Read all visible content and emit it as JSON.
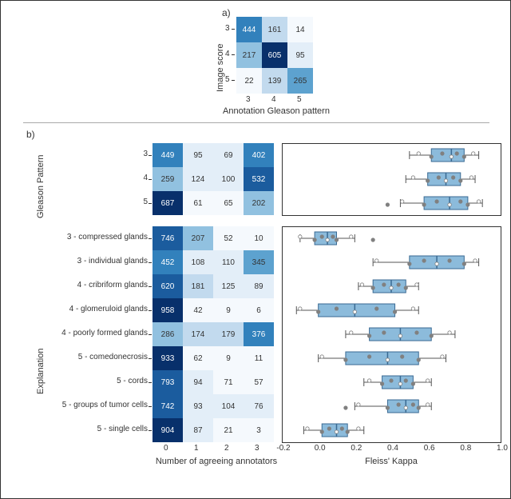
{
  "colors": {
    "bg": "#ffffff",
    "text": "#333333",
    "cell_scale": [
      "#f5f9fd",
      "#e3eef8",
      "#c2daee",
      "#91c1e0",
      "#5da2cf",
      "#3281bc",
      "#1b5c9e",
      "#08306b"
    ],
    "box_fill": "#8cbbdb",
    "box_edge": "#3a6a93",
    "whisker": "#555555",
    "point": "#808080",
    "point_hollow": "#ffffff",
    "axis": "#333333",
    "divider": "#aaaaaa"
  },
  "panel_a": {
    "label": "a)",
    "x_title": "Annotation Gleason pattern",
    "y_title": "Image score",
    "x_ticks": [
      "3",
      "4",
      "5"
    ],
    "y_ticks": [
      "3",
      "4",
      "5"
    ],
    "cells": [
      [
        {
          "v": 444,
          "c": 5
        },
        {
          "v": 161,
          "c": 2
        },
        {
          "v": 14,
          "c": 0
        }
      ],
      [
        {
          "v": 217,
          "c": 3
        },
        {
          "v": 605,
          "c": 7
        },
        {
          "v": 95,
          "c": 1
        }
      ],
      [
        {
          "v": 22,
          "c": 0
        },
        {
          "v": 139,
          "c": 2
        },
        {
          "v": 265,
          "c": 4
        }
      ]
    ],
    "cell_text_light": [
      [
        true,
        false,
        false
      ],
      [
        false,
        true,
        false
      ],
      [
        false,
        false,
        false
      ]
    ]
  },
  "panel_b": {
    "label": "b)",
    "heat_x_title": "Number of agreeing annotators",
    "heat_x_ticks": [
      "0",
      "1",
      "2",
      "3"
    ],
    "box_x_title": "Fleiss' Kappa",
    "box_x_ticks": [
      "-0.2",
      "0.0",
      "0.2",
      "0.4",
      "0.6",
      "0.8",
      "1.0"
    ],
    "box_xlim": [
      -0.2,
      1.0
    ],
    "group_labels": [
      "Gleason Pattern",
      "Explanation"
    ],
    "rows": [
      {
        "name": "3",
        "cells": [
          {
            "v": 449,
            "c": 5
          },
          {
            "v": 95,
            "c": 1
          },
          {
            "v": 69,
            "c": 1
          },
          {
            "v": 402,
            "c": 5
          }
        ],
        "light": [
          true,
          false,
          false,
          true
        ],
        "box": {
          "q1": 0.62,
          "med": 0.73,
          "q3": 0.8,
          "lo": 0.5,
          "hi": 0.88,
          "pts": [
            0.55,
            0.62,
            0.68,
            0.73,
            0.76,
            0.8,
            0.85
          ]
        }
      },
      {
        "name": "4",
        "cells": [
          {
            "v": 259,
            "c": 3
          },
          {
            "v": 124,
            "c": 1
          },
          {
            "v": 100,
            "c": 1
          },
          {
            "v": 532,
            "c": 6
          }
        ],
        "light": [
          false,
          false,
          false,
          true
        ],
        "box": {
          "q1": 0.6,
          "med": 0.7,
          "q3": 0.78,
          "lo": 0.48,
          "hi": 0.86,
          "pts": [
            0.52,
            0.6,
            0.66,
            0.7,
            0.74,
            0.78,
            0.84
          ]
        }
      },
      {
        "name": "5",
        "cells": [
          {
            "v": 687,
            "c": 7
          },
          {
            "v": 61,
            "c": 0
          },
          {
            "v": 65,
            "c": 0
          },
          {
            "v": 202,
            "c": 3
          }
        ],
        "light": [
          true,
          false,
          false,
          false
        ],
        "box": {
          "q1": 0.58,
          "med": 0.72,
          "q3": 0.82,
          "lo": 0.45,
          "hi": 0.9,
          "pts": [
            0.46,
            0.58,
            0.65,
            0.72,
            0.78,
            0.82,
            0.88,
            0.38
          ]
        }
      },
      {
        "name": "3 - compressed glands",
        "cells": [
          {
            "v": 746,
            "c": 6
          },
          {
            "v": 207,
            "c": 3
          },
          {
            "v": 52,
            "c": 0
          },
          {
            "v": 10,
            "c": 0
          }
        ],
        "light": [
          true,
          false,
          false,
          false
        ],
        "box": {
          "q1": -0.02,
          "med": 0.05,
          "q3": 0.1,
          "lo": -0.1,
          "hi": 0.2,
          "pts": [
            -0.1,
            -0.02,
            0.02,
            0.05,
            0.08,
            0.1,
            0.18,
            0.3
          ]
        }
      },
      {
        "name": "3 - individual glands",
        "cells": [
          {
            "v": 452,
            "c": 5
          },
          {
            "v": 108,
            "c": 1
          },
          {
            "v": 110,
            "c": 1
          },
          {
            "v": 345,
            "c": 4
          }
        ],
        "light": [
          true,
          false,
          false,
          false
        ],
        "box": {
          "q1": 0.5,
          "med": 0.65,
          "q3": 0.8,
          "lo": 0.3,
          "hi": 0.88,
          "pts": [
            0.32,
            0.5,
            0.58,
            0.65,
            0.72,
            0.8,
            0.86
          ]
        }
      },
      {
        "name": "4 - cribriform glands",
        "cells": [
          {
            "v": 620,
            "c": 6
          },
          {
            "v": 181,
            "c": 2
          },
          {
            "v": 125,
            "c": 1
          },
          {
            "v": 89,
            "c": 1
          }
        ],
        "light": [
          true,
          false,
          false,
          false
        ],
        "box": {
          "q1": 0.3,
          "med": 0.4,
          "q3": 0.48,
          "lo": 0.22,
          "hi": 0.55,
          "pts": [
            0.24,
            0.3,
            0.36,
            0.4,
            0.44,
            0.48,
            0.54
          ]
        }
      },
      {
        "name": "4 - glomeruloid glands",
        "cells": [
          {
            "v": 958,
            "c": 7
          },
          {
            "v": 42,
            "c": 0
          },
          {
            "v": 9,
            "c": 0
          },
          {
            "v": 6,
            "c": 0
          }
        ],
        "light": [
          true,
          false,
          false,
          false
        ],
        "box": {
          "q1": 0.0,
          "med": 0.2,
          "q3": 0.42,
          "lo": -0.12,
          "hi": 0.55,
          "pts": [
            -0.1,
            0.0,
            0.1,
            0.2,
            0.32,
            0.42,
            0.52
          ]
        }
      },
      {
        "name": "4 - poorly formed glands",
        "cells": [
          {
            "v": 286,
            "c": 3
          },
          {
            "v": 174,
            "c": 2
          },
          {
            "v": 179,
            "c": 2
          },
          {
            "v": 376,
            "c": 5
          }
        ],
        "light": [
          false,
          false,
          false,
          true
        ],
        "box": {
          "q1": 0.28,
          "med": 0.45,
          "q3": 0.62,
          "lo": 0.15,
          "hi": 0.75,
          "pts": [
            0.18,
            0.28,
            0.36,
            0.45,
            0.54,
            0.62,
            0.72
          ]
        }
      },
      {
        "name": "5 - comedonecrosis",
        "cells": [
          {
            "v": 933,
            "c": 7
          },
          {
            "v": 62,
            "c": 0
          },
          {
            "v": 9,
            "c": 0
          },
          {
            "v": 11,
            "c": 0
          }
        ],
        "light": [
          true,
          false,
          false,
          false
        ],
        "box": {
          "q1": 0.15,
          "med": 0.38,
          "q3": 0.55,
          "lo": 0.0,
          "hi": 0.7,
          "pts": [
            0.02,
            0.15,
            0.28,
            0.38,
            0.46,
            0.55,
            0.68
          ]
        }
      },
      {
        "name": "5 - cords",
        "cells": [
          {
            "v": 793,
            "c": 6
          },
          {
            "v": 94,
            "c": 1
          },
          {
            "v": 71,
            "c": 0
          },
          {
            "v": 57,
            "c": 0
          }
        ],
        "light": [
          true,
          false,
          false,
          false
        ],
        "box": {
          "q1": 0.35,
          "med": 0.45,
          "q3": 0.52,
          "lo": 0.25,
          "hi": 0.62,
          "pts": [
            0.28,
            0.35,
            0.4,
            0.45,
            0.48,
            0.52,
            0.6
          ]
        }
      },
      {
        "name": "5 - groups of tumor cells",
        "cells": [
          {
            "v": 742,
            "c": 6
          },
          {
            "v": 93,
            "c": 1
          },
          {
            "v": 104,
            "c": 1
          },
          {
            "v": 76,
            "c": 1
          }
        ],
        "light": [
          true,
          false,
          false,
          false
        ],
        "box": {
          "q1": 0.38,
          "med": 0.48,
          "q3": 0.55,
          "lo": 0.2,
          "hi": 0.62,
          "pts": [
            0.22,
            0.38,
            0.44,
            0.48,
            0.52,
            0.55,
            0.6,
            0.15
          ]
        }
      },
      {
        "name": "5 - single cells",
        "cells": [
          {
            "v": 904,
            "c": 7
          },
          {
            "v": 87,
            "c": 1
          },
          {
            "v": 21,
            "c": 0
          },
          {
            "v": 3,
            "c": 0
          }
        ],
        "light": [
          true,
          false,
          false,
          false
        ],
        "box": {
          "q1": 0.02,
          "med": 0.1,
          "q3": 0.16,
          "lo": -0.08,
          "hi": 0.25,
          "pts": [
            -0.06,
            0.02,
            0.06,
            0.1,
            0.13,
            0.16,
            0.22
          ]
        }
      }
    ]
  }
}
